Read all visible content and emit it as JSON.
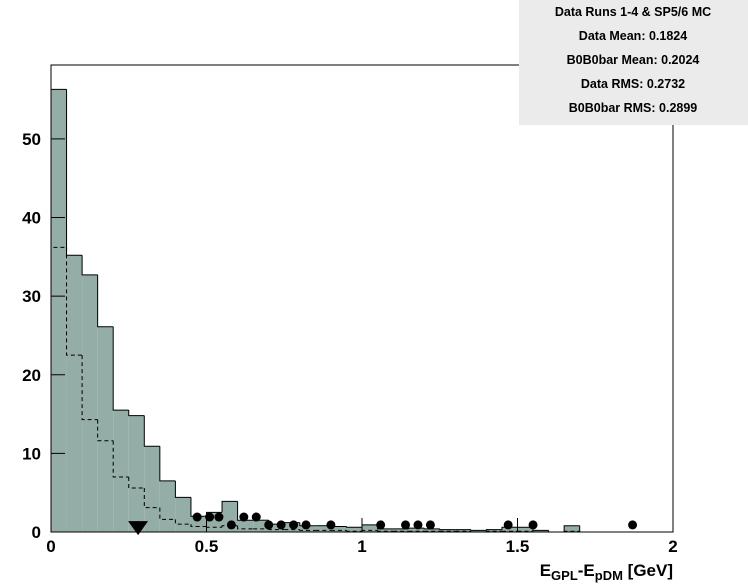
{
  "chart_data": {
    "type": "histogram",
    "bins": [
      0,
      0.05,
      0.1,
      0.15,
      0.2,
      0.25,
      0.3,
      0.35,
      0.4,
      0.45,
      0.5,
      0.55,
      0.6,
      0.65,
      0.7,
      0.75,
      0.8,
      0.85,
      0.9,
      0.95,
      1.0,
      1.05,
      1.1,
      1.15,
      1.2,
      1.25,
      1.3,
      1.35,
      1.4,
      1.45,
      1.5,
      1.55,
      1.6,
      1.65,
      1.7,
      1.75,
      1.8,
      1.85,
      1.9,
      1.95,
      2.0
    ],
    "series": [
      {
        "style": "filled",
        "color": "#94ada6",
        "values": [
          56.3,
          35.2,
          32.7,
          26.1,
          15.5,
          14.8,
          10.9,
          6.5,
          4.4,
          2.0,
          2.5,
          3.9,
          1.5,
          1.5,
          1.0,
          1.2,
          0.8,
          0.8,
          0.7,
          0.6,
          0.9,
          0.4,
          0.4,
          0.5,
          0.4,
          0.3,
          0.3,
          0.2,
          0.3,
          0.6,
          0.6,
          0.2,
          0,
          0.8,
          0,
          0,
          0,
          0,
          0,
          0
        ]
      },
      {
        "style": "dashed",
        "color": "#000000",
        "values": [
          36.2,
          22.5,
          14.3,
          11.6,
          7.0,
          5.6,
          3.1,
          1.6,
          1.0,
          0.7,
          0.6,
          0.8,
          0.4,
          0.4,
          0.3,
          0.3,
          0.2,
          0.2,
          0.2,
          0.1,
          0.2,
          0.1,
          0.1,
          0.1,
          0.1,
          0.1,
          0.1,
          0,
          0.1,
          0.1,
          0.1,
          0,
          0,
          0.1,
          0,
          0,
          0,
          0,
          0,
          0
        ]
      }
    ],
    "points": {
      "color": "#000000",
      "x": [
        0.47,
        0.51,
        0.54,
        0.58,
        0.62,
        0.66,
        0.7,
        0.74,
        0.78,
        0.82,
        0.9,
        1.06,
        1.14,
        1.18,
        1.22,
        1.47,
        1.55,
        1.87
      ],
      "y": [
        1.9,
        1.9,
        1.9,
        0.9,
        1.9,
        1.9,
        0.9,
        0.9,
        0.9,
        0.9,
        0.9,
        0.9,
        0.9,
        0.9,
        0.9,
        0.9,
        0.9,
        0.9
      ]
    },
    "marker": {
      "x": 0.28,
      "y": 0.5
    },
    "xlim": [
      0,
      2
    ],
    "ylim": [
      0,
      59.4
    ],
    "xticks": [
      0,
      0.5,
      1,
      1.5,
      2
    ],
    "yticks": [
      0,
      10,
      20,
      30,
      40,
      50
    ],
    "x_label": [
      {
        "text": "E",
        "sub": false
      },
      {
        "text": "GPL",
        "sub": true
      },
      {
        "text": "-E",
        "sub": false
      },
      {
        "text": "pDM",
        "sub": true
      },
      {
        "text": " [GeV]",
        "sub": false
      }
    ],
    "stats_box": [
      "Data Runs 1-4 & SP5/6 MC",
      "Data Mean: 0.1824",
      "B0B0bar Mean: 0.2024",
      "Data RMS: 0.2732",
      "B0B0bar RMS: 0.2899"
    ]
  }
}
